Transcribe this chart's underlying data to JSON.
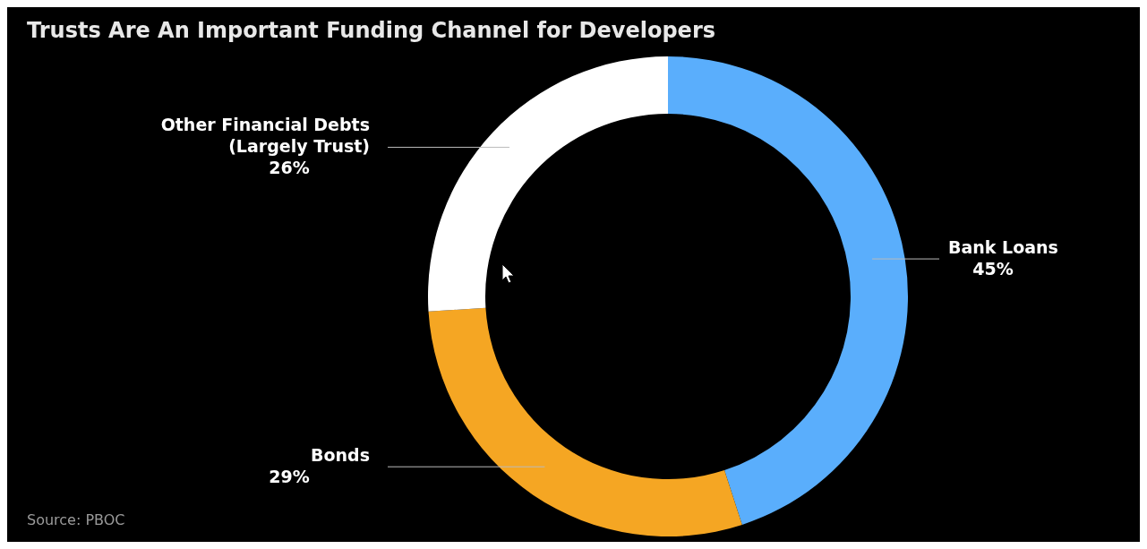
{
  "chart_data": {
    "type": "donut",
    "title": "Trusts Are An Important Funding Channel for Developers",
    "categories": [
      "Bank Loans",
      "Bonds",
      "Other Financial Debts\n(Largely Trust)"
    ],
    "values": [
      45,
      29,
      26
    ],
    "value_labels": [
      "45%",
      "29%",
      "26%"
    ],
    "colors": [
      "#5aaefc",
      "#f5a623",
      "#ffffff"
    ],
    "annotations": [
      "Source: PBOC"
    ]
  }
}
